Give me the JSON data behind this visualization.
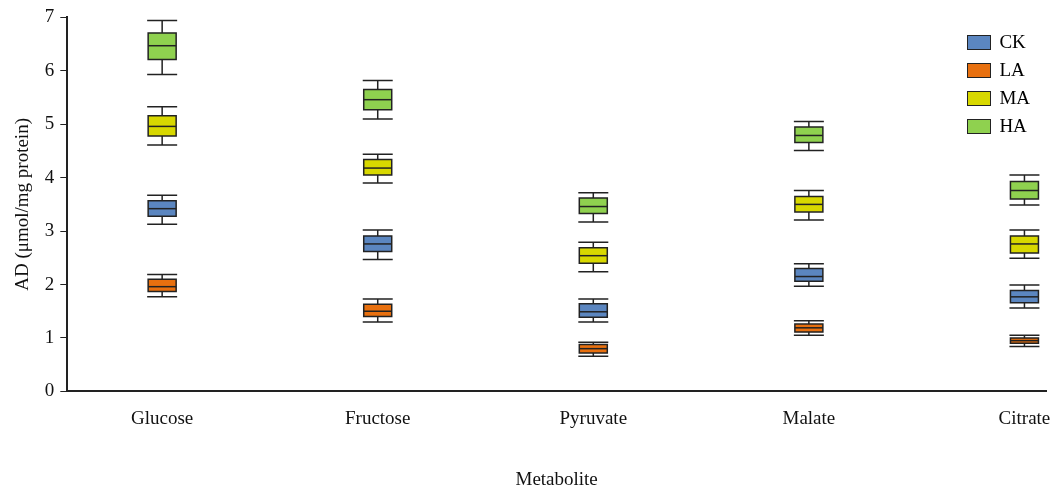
{
  "chart_data": {
    "type": "box",
    "xlabel": "Metabolite",
    "ylabel": "AD (μmol/mg protein)",
    "categories": [
      "Glucose",
      "Fructose",
      "Pyruvate",
      "Malate",
      "Citrate"
    ],
    "ylim": [
      0,
      7
    ],
    "yticks": [
      0,
      1,
      2,
      3,
      4,
      5,
      6,
      7
    ],
    "grid": false,
    "legend": "top right",
    "series": [
      {
        "name": "CK",
        "color": "#5b86c0",
        "boxes": [
          {
            "low": 3.13,
            "q1": 3.28,
            "median": 3.42,
            "q3": 3.57,
            "high": 3.67
          },
          {
            "low": 2.47,
            "q1": 2.62,
            "median": 2.76,
            "q3": 2.91,
            "high": 3.02
          },
          {
            "low": 1.3,
            "q1": 1.39,
            "median": 1.49,
            "q3": 1.64,
            "high": 1.73
          },
          {
            "low": 1.97,
            "q1": 2.06,
            "median": 2.15,
            "q3": 2.3,
            "high": 2.39
          },
          {
            "low": 1.56,
            "q1": 1.66,
            "median": 1.77,
            "q3": 1.89,
            "high": 1.99
          }
        ]
      },
      {
        "name": "LA",
        "color": "#e8700f",
        "boxes": [
          {
            "low": 1.77,
            "q1": 1.87,
            "median": 1.96,
            "q3": 2.1,
            "high": 2.19
          },
          {
            "low": 1.3,
            "q1": 1.4,
            "median": 1.5,
            "q3": 1.63,
            "high": 1.73
          },
          {
            "low": 0.66,
            "q1": 0.72,
            "median": 0.8,
            "q3": 0.88,
            "high": 0.92
          },
          {
            "low": 1.05,
            "q1": 1.11,
            "median": 1.19,
            "q3": 1.26,
            "high": 1.32
          },
          {
            "low": 0.84,
            "q1": 0.9,
            "median": 0.95,
            "q3": 1.0,
            "high": 1.05
          }
        ]
      },
      {
        "name": "MA",
        "color": "#d8d800",
        "boxes": [
          {
            "low": 4.61,
            "q1": 4.78,
            "median": 4.96,
            "q3": 5.16,
            "high": 5.33
          },
          {
            "low": 3.9,
            "q1": 4.05,
            "median": 4.18,
            "q3": 4.34,
            "high": 4.44
          },
          {
            "low": 2.24,
            "q1": 2.4,
            "median": 2.54,
            "q3": 2.69,
            "high": 2.79
          },
          {
            "low": 3.21,
            "q1": 3.36,
            "median": 3.5,
            "q3": 3.65,
            "high": 3.76
          },
          {
            "low": 2.49,
            "q1": 2.59,
            "median": 2.76,
            "q3": 2.91,
            "high": 3.02
          }
        ]
      },
      {
        "name": "HA",
        "color": "#8fd14f",
        "boxes": [
          {
            "low": 5.93,
            "q1": 6.21,
            "median": 6.47,
            "q3": 6.71,
            "high": 6.94
          },
          {
            "low": 5.1,
            "q1": 5.27,
            "median": 5.46,
            "q3": 5.65,
            "high": 5.82
          },
          {
            "low": 3.17,
            "q1": 3.33,
            "median": 3.46,
            "q3": 3.62,
            "high": 3.72
          },
          {
            "low": 4.51,
            "q1": 4.66,
            "median": 4.79,
            "q3": 4.95,
            "high": 5.05
          },
          {
            "low": 3.49,
            "q1": 3.6,
            "median": 3.76,
            "q3": 3.93,
            "high": 4.05
          }
        ]
      }
    ]
  }
}
